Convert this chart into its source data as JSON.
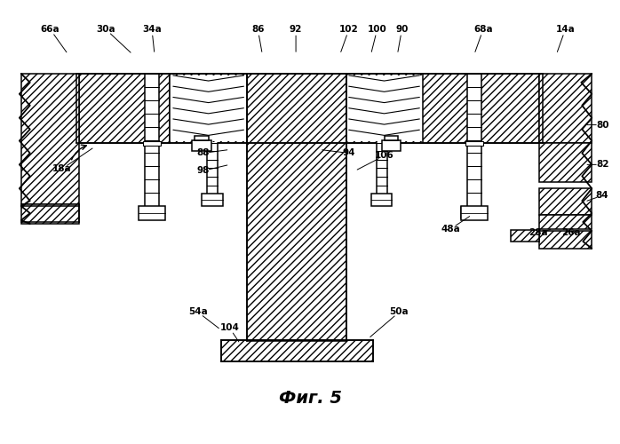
{
  "title": "Фиг. 5",
  "bg": "#ffffff",
  "lw": 1.1,
  "hatch": "////",
  "figsize": [
    6.98,
    5.0
  ],
  "dpi": 100,
  "labels": {
    "66a": [
      55,
      468,
      75,
      440
    ],
    "30a": [
      118,
      468,
      148,
      440
    ],
    "34a": [
      170,
      468,
      173,
      440
    ],
    "86": [
      290,
      468,
      295,
      440
    ],
    "92": [
      333,
      468,
      333,
      440
    ],
    "102": [
      393,
      468,
      383,
      440
    ],
    "100": [
      425,
      468,
      418,
      440
    ],
    "90": [
      453,
      468,
      448,
      440
    ],
    "68a": [
      545,
      468,
      535,
      440
    ],
    "14a": [
      638,
      468,
      628,
      440
    ],
    "80": [
      680,
      360,
      660,
      360
    ],
    "82": [
      680,
      315,
      660,
      315
    ],
    "84": [
      680,
      280,
      660,
      273
    ],
    "88": [
      228,
      328,
      258,
      332
    ],
    "98": [
      228,
      308,
      258,
      315
    ],
    "94": [
      393,
      328,
      360,
      332
    ],
    "106": [
      433,
      325,
      400,
      308
    ],
    "48a": [
      508,
      242,
      532,
      258
    ],
    "28a": [
      607,
      238,
      624,
      242
    ],
    "26a": [
      645,
      238,
      650,
      242
    ],
    "18a": [
      68,
      310,
      105,
      335
    ],
    "54a": [
      222,
      148,
      248,
      128
    ],
    "104": [
      258,
      130,
      270,
      112
    ],
    "50a": [
      450,
      148,
      415,
      118
    ]
  }
}
